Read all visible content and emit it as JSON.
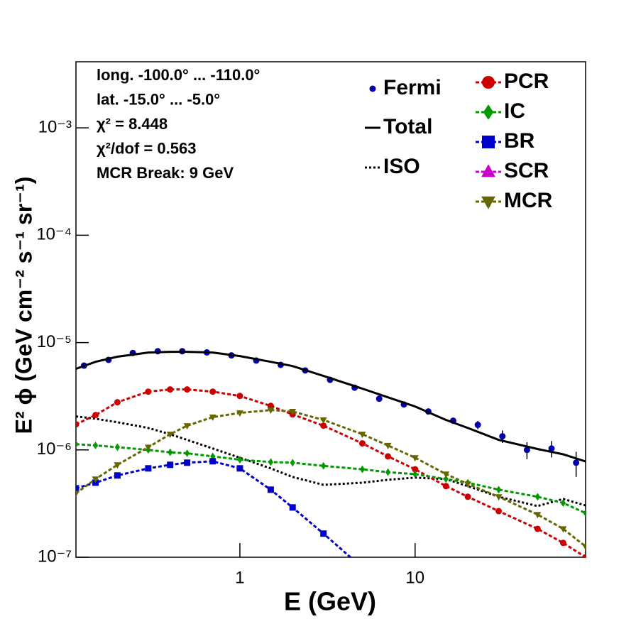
{
  "chart_data": {
    "type": "line",
    "xlabel": "E (GeV)",
    "ylabel": "E² ϕ (GeV cm⁻² s⁻¹ sr⁻¹)",
    "annotations": [
      "long. -100.0° ... -110.0°",
      "lat. -15.0° ... -5.0°",
      "χ² = 8.448",
      "χ²/dof = 0.563",
      "MCR Break:  9 GeV"
    ],
    "xlog": true,
    "ylog": true,
    "xlim": [
      0.116,
      94
    ],
    "ylim": [
      1e-07,
      0.00413
    ],
    "xticks": [
      1,
      10
    ],
    "yticks": [
      {
        "value": 1e-07,
        "label": "10⁻⁷"
      },
      {
        "value": 1e-06,
        "label": "10⁻⁶"
      },
      {
        "value": 1e-05,
        "label": "10⁻⁵"
      },
      {
        "value": 0.0001,
        "label": "10⁻⁴"
      },
      {
        "value": 0.001,
        "label": "10⁻³"
      }
    ],
    "series": [
      {
        "name": "Fermi",
        "color": "#0000aa",
        "style": "points",
        "marker": "circle",
        "x": [
          0.129,
          0.178,
          0.245,
          0.34,
          0.469,
          0.648,
          0.895,
          1.24,
          1.71,
          2.36,
          3.27,
          4.52,
          6.24,
          8.63,
          11.9,
          16.5,
          22.8,
          31.5,
          43.5,
          60.1,
          83.0
        ],
        "values": [
          6.1e-06,
          6.9e-06,
          8e-06,
          8.3e-06,
          8.3e-06,
          8.1e-06,
          7.6e-06,
          6.8e-06,
          6.2e-06,
          5.5e-06,
          4.5e-06,
          3.8e-06,
          3e-06,
          2.65e-06,
          2.28e-06,
          1.87e-06,
          1.71e-06,
          1.34e-06,
          1e-06,
          1.03e-06,
          7.6e-07
        ],
        "errors": [
          1e-07,
          1e-07,
          1e-07,
          1e-07,
          1e-07,
          1e-07,
          1e-07,
          1e-07,
          1e-07,
          1e-07,
          8e-08,
          8e-08,
          6e-08,
          6e-08,
          8e-08,
          1.2e-07,
          1.5e-07,
          1.8e-07,
          1.8e-07,
          1.8e-07,
          2e-07
        ]
      },
      {
        "name": "Total",
        "color": "#000000",
        "style": "solid",
        "marker": "none",
        "x": [
          0.116,
          0.15,
          0.2,
          0.3,
          0.4,
          0.5,
          0.7,
          1,
          1.5,
          2,
          3,
          5,
          7,
          10,
          15,
          20,
          30,
          50,
          70,
          94
        ],
        "values": [
          5.69e-06,
          6.62e-06,
          7.38e-06,
          8.08e-06,
          8.2e-06,
          8.2e-06,
          8.08e-06,
          7.49e-06,
          6.62e-06,
          6.04e-06,
          4.89e-06,
          3.72e-06,
          3.09e-06,
          2.54e-06,
          1.9e-06,
          1.6e-06,
          1.24e-06,
          1.02e-06,
          9.1e-07,
          7.8e-07
        ]
      },
      {
        "name": "ISO",
        "color": "#000000",
        "style": "dotted",
        "marker": "none",
        "x": [
          0.116,
          0.15,
          0.2,
          0.3,
          0.4,
          0.5,
          0.7,
          1,
          1.5,
          2,
          3,
          5,
          7,
          10,
          15,
          20,
          30,
          50,
          70,
          94
        ],
        "values": [
          2.05e-06,
          1.95e-06,
          1.81e-06,
          1.6e-06,
          1.4e-06,
          1.24e-06,
          1.03e-06,
          8.45e-07,
          6.73e-07,
          5.6e-07,
          4.73e-07,
          4.95e-07,
          5.27e-07,
          5.52e-07,
          5.35e-07,
          4.59e-07,
          3.66e-07,
          3e-07,
          3.49e-07,
          3.04e-07
        ]
      },
      {
        "name": "PCR",
        "color": "#cc0000",
        "style": "dashed",
        "marker": "circle",
        "x": [
          0.116,
          0.15,
          0.2,
          0.3,
          0.4,
          0.5,
          0.7,
          1,
          1.5,
          2,
          3,
          5,
          7,
          10,
          15,
          20,
          30,
          50,
          70,
          94
        ],
        "values": [
          1.73e-06,
          2.11e-06,
          2.78e-06,
          3.49e-06,
          3.66e-06,
          3.66e-06,
          3.49e-06,
          3.18e-06,
          2.57e-06,
          2.14e-06,
          1.68e-06,
          1.15e-06,
          8.7e-07,
          6.6e-07,
          4.6e-07,
          3.66e-07,
          2.69e-07,
          1.84e-07,
          1.36e-07,
          1e-07
        ]
      },
      {
        "name": "IC",
        "color": "#009900",
        "style": "dashed",
        "marker": "diamond",
        "x": [
          0.116,
          0.15,
          0.2,
          0.3,
          0.4,
          0.5,
          0.7,
          1,
          1.5,
          2,
          3,
          5,
          7,
          10,
          15,
          20,
          30,
          50,
          70,
          94
        ],
        "values": [
          1.13e-06,
          1.1e-06,
          1.06e-06,
          1e-06,
          9.5e-07,
          9.3e-07,
          8.7e-07,
          8.1e-07,
          7.7e-07,
          7.6e-07,
          7.1e-07,
          6.6e-07,
          6.2e-07,
          5.95e-07,
          5.35e-07,
          4.95e-07,
          4.26e-07,
          3.66e-07,
          3.2e-07,
          2.58e-07
        ]
      },
      {
        "name": "BR",
        "color": "#0000cc",
        "style": "dashed",
        "marker": "square",
        "x": [
          0.116,
          0.15,
          0.2,
          0.3,
          0.4,
          0.5,
          0.7,
          1,
          1.5,
          2,
          3,
          5,
          7,
          10,
          15,
          20,
          30,
          50,
          70,
          94
        ],
        "values": [
          4.39e-07,
          4.95e-07,
          5.78e-07,
          6.73e-07,
          7.26e-07,
          7.6e-07,
          7.84e-07,
          6.73e-07,
          4.26e-07,
          2.91e-07,
          1.66e-07,
          8e-08,
          null,
          null,
          null,
          null,
          null,
          null,
          null,
          null
        ]
      },
      {
        "name": "SCR",
        "color": "#cc00cc",
        "style": "dashed",
        "marker": "triangle-up",
        "x": [],
        "values": []
      },
      {
        "name": "MCR",
        "color": "#666600",
        "style": "dashed",
        "marker": "triangle-down",
        "x": [
          0.116,
          0.15,
          0.2,
          0.3,
          0.4,
          0.5,
          0.7,
          1,
          1.5,
          2,
          3,
          5,
          7,
          10,
          15,
          20,
          30,
          50,
          70,
          94
        ],
        "values": [
          3.94e-07,
          5.35e-07,
          7.26e-07,
          1.06e-06,
          1.4e-06,
          1.68e-06,
          2.02e-06,
          2.21e-06,
          2.35e-06,
          2.28e-06,
          1.9e-06,
          1.4e-06,
          1.1e-06,
          8.45e-07,
          5.95e-07,
          4.81e-07,
          3.66e-07,
          2.5e-07,
          1.84e-07,
          1.26e-07
        ]
      }
    ]
  }
}
